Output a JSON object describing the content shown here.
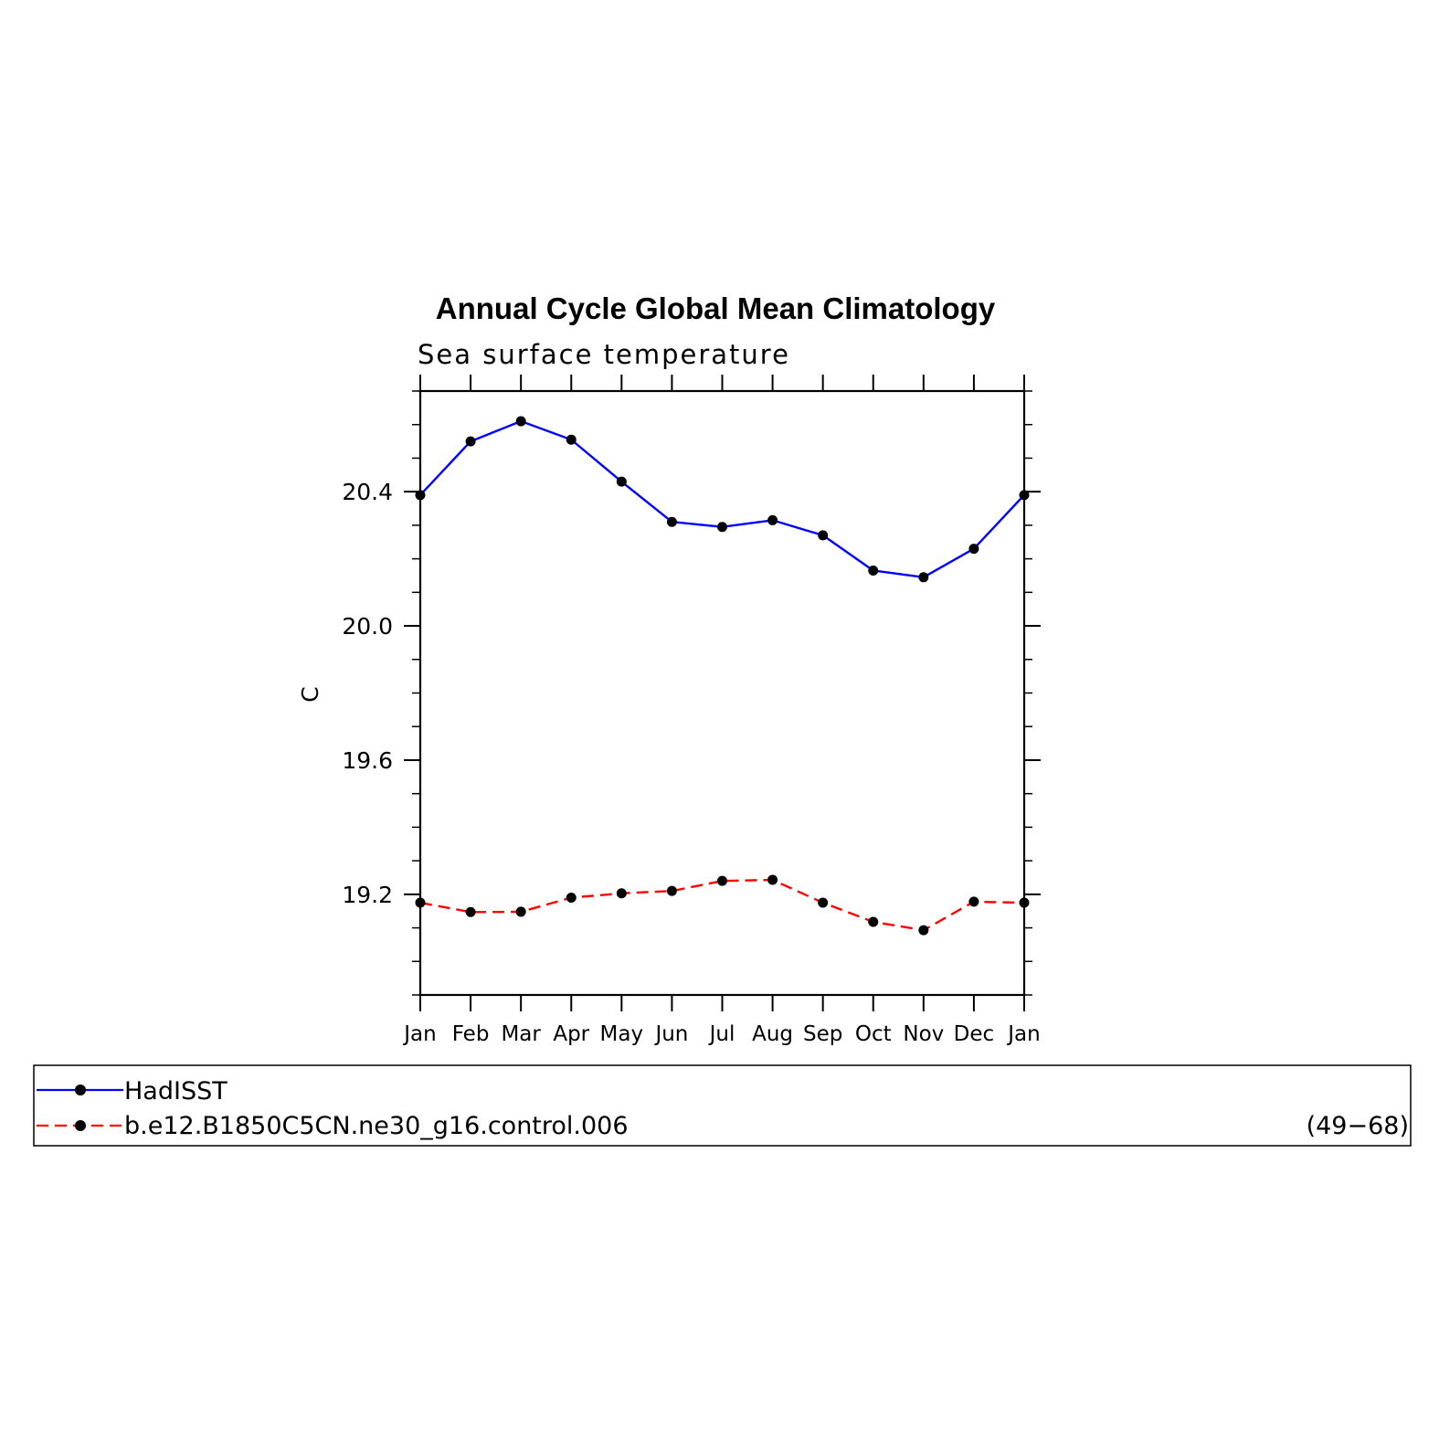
{
  "chart_data": {
    "type": "line",
    "title": "Annual Cycle Global Mean Climatology",
    "subtitle": "Sea surface temperature",
    "ylabel": "C",
    "xlabel": "",
    "categories": [
      "Jan",
      "Feb",
      "Mar",
      "Apr",
      "May",
      "Jun",
      "Jul",
      "Aug",
      "Sep",
      "Oct",
      "Nov",
      "Dec",
      "Jan"
    ],
    "ylim": [
      18.9,
      20.7
    ],
    "yticks": [
      19.2,
      19.6,
      20.0,
      20.4
    ],
    "ytick_labels": [
      "19.2",
      "19.6",
      "20.0",
      "20.4"
    ],
    "grid": false,
    "series": [
      {
        "name": "HadISST",
        "color": "#0000ff",
        "dash": "solid",
        "values": [
          20.39,
          20.55,
          20.61,
          20.555,
          20.43,
          20.31,
          20.295,
          20.315,
          20.27,
          20.165,
          20.145,
          20.23,
          20.39
        ]
      },
      {
        "name": "b.e12.B1850C5CN.ne30_g16.control.006",
        "color": "#ff0000",
        "dash": "dashed",
        "values": [
          19.175,
          19.147,
          19.148,
          19.19,
          19.203,
          19.21,
          19.24,
          19.243,
          19.175,
          19.118,
          19.093,
          19.178,
          19.175
        ]
      }
    ],
    "legend": {
      "placement": "bottom",
      "years_label": "(49−68)"
    }
  }
}
